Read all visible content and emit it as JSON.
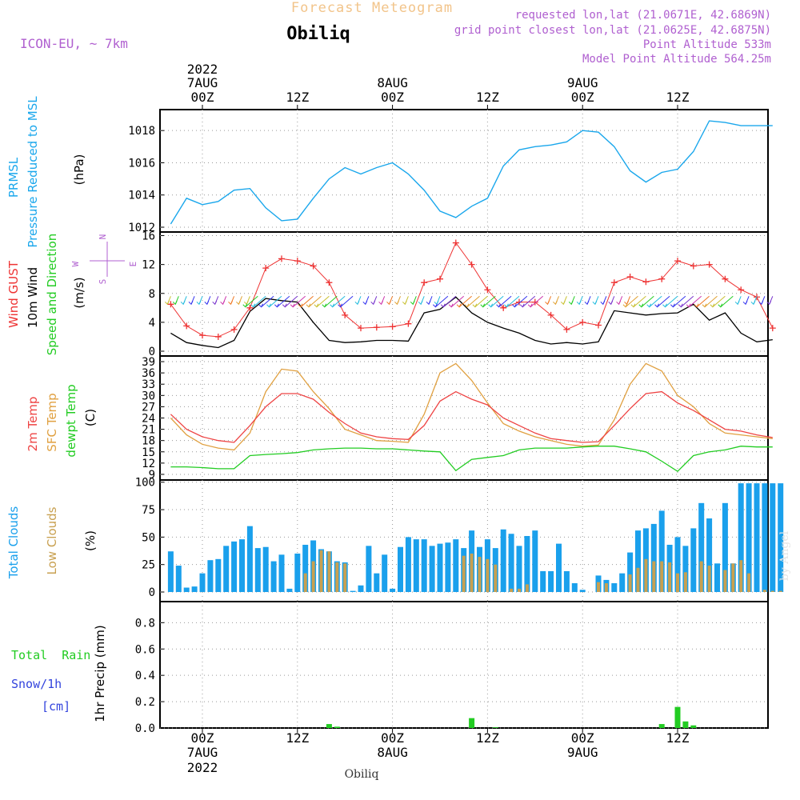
{
  "header": {
    "product_title": "Forecast Meteogram",
    "location": "Obiliq",
    "model": "ICON-EU, ~ 7km",
    "requested": "requested lon,lat (21.0671E, 42.6869N)",
    "gridpoint": "grid point closest lon,lat (21.0625E, 42.6875N)",
    "altitude": "Point Altitude 533m",
    "model_altitude": "Model Point Altitude 564.25m",
    "footer_location": "Obiliq",
    "credit": "by Angel"
  },
  "time_axis": {
    "top": {
      "year": "2022",
      "labels": [
        {
          "date": "7AUG",
          "hour": "00Z"
        },
        {
          "date": "",
          "hour": "12Z"
        },
        {
          "date": "8AUG",
          "hour": "00Z"
        },
        {
          "date": "",
          "hour": "12Z"
        },
        {
          "date": "9AUG",
          "hour": "00Z"
        },
        {
          "date": "",
          "hour": "12Z"
        }
      ]
    },
    "bottom": {
      "hours": [
        "00Z",
        "12Z",
        "00Z",
        "12Z",
        "00Z",
        "12Z"
      ],
      "dates": [
        "7AUG",
        "",
        "8AUG",
        "",
        "9AUG",
        ""
      ],
      "year": "2022"
    }
  },
  "panel_labels": {
    "pressure": {
      "name": "PRMSL",
      "desc": "Pressure Reduced to MSL",
      "unit": "(hPa)"
    },
    "wind": {
      "gust": "Wind GUST",
      "wind10": "10m Wind",
      "dir": "Speed and Direction",
      "unit": "(m/s)",
      "compass_ns": "N",
      "compass_s": "S",
      "compass_w": "W",
      "compass_e": "E"
    },
    "temp": {
      "t2m": "2m Temp",
      "sfc": "SFC Temp",
      "dew": "dewpt Temp",
      "unit": "(C)"
    },
    "clouds": {
      "total": "Total Clouds",
      "low": "Low Clouds",
      "unit": "(%)"
    },
    "precip": {
      "rain": "Total  Rain",
      "snow1": "Snow/1h",
      "snow2": "[cm]",
      "ylabel": "1hr Precip (mm)"
    }
  },
  "colors": {
    "pressure": "#1aa7ec",
    "gust": "#ee3333",
    "wind10": "#000000",
    "t2m": "#ee4444",
    "sfc": "#e0a040",
    "dew": "#22cc22",
    "total_clouds": "#1aa0ec",
    "low_clouds": "#c8a050",
    "rain": "#22cc22",
    "purple": "#b060d0",
    "orange_title": "#f0c080",
    "snow": "#3344dd"
  },
  "chart_data": [
    {
      "type": "line",
      "name": "pressure",
      "x_hours": [
        -4,
        -2,
        0,
        2,
        4,
        6,
        8,
        10,
        12,
        14,
        16,
        18,
        20,
        22,
        24,
        26,
        28,
        30,
        32,
        34,
        36,
        38,
        40,
        42,
        44,
        46,
        48,
        50,
        52,
        54,
        56,
        58,
        60,
        62,
        64,
        66,
        68,
        70,
        72
      ],
      "series": [
        {
          "name": "PRMSL",
          "values": [
            1012.2,
            1013.8,
            1013.4,
            1013.6,
            1014.3,
            1014.4,
            1013.2,
            1012.4,
            1012.5,
            1013.8,
            1015.0,
            1015.7,
            1015.3,
            1015.7,
            1016.0,
            1015.3,
            1014.3,
            1013.0,
            1012.6,
            1013.3,
            1013.8,
            1015.8,
            1016.8,
            1017.0,
            1017.1,
            1017.3,
            1018.0,
            1017.9,
            1017.0,
            1015.5,
            1014.8,
            1015.4,
            1015.6,
            1016.7,
            1018.6,
            1018.5,
            1018.3,
            1018.3,
            1018.3
          ]
        }
      ],
      "y_ticks": [
        1012,
        1014,
        1016,
        1018
      ],
      "ylim": [
        1012,
        1019.3
      ]
    },
    {
      "type": "line",
      "name": "wind",
      "x_hours": [
        -4,
        -2,
        0,
        2,
        4,
        6,
        8,
        10,
        12,
        14,
        16,
        18,
        20,
        22,
        24,
        26,
        28,
        30,
        32,
        34,
        36,
        38,
        40,
        42,
        44,
        46,
        48,
        50,
        52,
        54,
        56,
        58,
        60,
        62,
        64,
        66,
        68,
        70,
        72
      ],
      "series": [
        {
          "name": "Wind GUST",
          "values": [
            6.5,
            3.5,
            2.2,
            2.0,
            3.0,
            6.0,
            11.5,
            12.8,
            12.5,
            11.8,
            9.5,
            5.0,
            3.2,
            3.3,
            3.4,
            3.8,
            9.5,
            10.0,
            15.0,
            12.0,
            8.5,
            6.0,
            6.8,
            6.8,
            5.0,
            3.0,
            4.0,
            3.6,
            9.5,
            10.3,
            9.6,
            10.0,
            12.5,
            11.8,
            12.0,
            10.0,
            8.5,
            7.5,
            3.2
          ]
        },
        {
          "name": "10m Wind",
          "values": [
            2.5,
            1.2,
            0.8,
            0.5,
            1.5,
            5.5,
            7.3,
            7.0,
            6.8,
            4.0,
            1.5,
            1.2,
            1.3,
            1.5,
            1.5,
            1.4,
            5.3,
            5.8,
            7.5,
            5.3,
            4.0,
            3.2,
            2.5,
            1.5,
            1.0,
            1.2,
            1.0,
            1.3,
            5.6,
            5.3,
            5.0,
            5.2,
            5.3,
            6.5,
            4.3,
            5.3,
            2.5,
            1.3,
            1.6
          ]
        }
      ],
      "y_ticks": [
        0,
        4,
        8,
        12,
        16
      ],
      "ylim": [
        0,
        16.5
      ]
    },
    {
      "type": "line",
      "name": "temperature",
      "x_hours": [
        -4,
        -2,
        0,
        2,
        4,
        6,
        8,
        10,
        12,
        14,
        16,
        18,
        20,
        22,
        24,
        26,
        28,
        30,
        32,
        34,
        36,
        38,
        40,
        42,
        44,
        46,
        48,
        50,
        52,
        54,
        56,
        58,
        60,
        62,
        64,
        66,
        68,
        70,
        72
      ],
      "series": [
        {
          "name": "2m Temp",
          "values": [
            25.0,
            21.0,
            19.0,
            18.0,
            17.5,
            22.0,
            27.0,
            30.5,
            30.5,
            29.0,
            25.5,
            22.5,
            20.0,
            19.0,
            18.5,
            18.3,
            22.0,
            28.5,
            31.0,
            29.0,
            27.5,
            24.0,
            22.0,
            20.0,
            18.5,
            18.0,
            17.5,
            17.7,
            22.0,
            26.5,
            30.5,
            31.0,
            28.0,
            26.0,
            23.5,
            21.0,
            20.5,
            19.5,
            18.8
          ]
        },
        {
          "name": "SFC Temp",
          "values": [
            24.0,
            19.5,
            17.0,
            16.0,
            15.5,
            20.0,
            31.0,
            37.0,
            36.5,
            31.0,
            26.5,
            21.0,
            19.5,
            18.0,
            17.8,
            17.5,
            25.0,
            36.0,
            38.5,
            34.0,
            28.0,
            22.5,
            20.5,
            19.0,
            18.0,
            17.0,
            16.5,
            16.8,
            23.5,
            33.0,
            38.5,
            36.5,
            30.0,
            27.0,
            22.5,
            20.0,
            19.5,
            19.0,
            18.5
          ]
        },
        {
          "name": "dewpt Temp",
          "values": [
            11.0,
            11.0,
            10.8,
            10.5,
            10.5,
            14.0,
            14.3,
            14.5,
            14.8,
            15.5,
            15.8,
            16.0,
            16.0,
            15.8,
            15.8,
            15.5,
            15.2,
            15.0,
            10.0,
            13.0,
            13.5,
            14.0,
            15.5,
            16.0,
            16.0,
            16.0,
            16.3,
            16.5,
            16.5,
            15.8,
            15.0,
            12.5,
            9.8,
            14.0,
            15.0,
            15.5,
            16.5,
            16.3,
            16.3
          ]
        }
      ],
      "y_ticks": [
        9,
        12,
        15,
        18,
        21,
        24,
        27,
        30,
        33,
        36,
        39
      ],
      "ylim": [
        7.5,
        40.5
      ]
    },
    {
      "type": "bar",
      "name": "clouds",
      "x_start_hour": -4,
      "x_step_hours": 1,
      "series": [
        {
          "name": "Total Clouds",
          "values": [
            37,
            24,
            4,
            5,
            17,
            29,
            30,
            42,
            46,
            48,
            60,
            40,
            41,
            28,
            34,
            3,
            35,
            43,
            47,
            39,
            37,
            28,
            27,
            1,
            6,
            42,
            17,
            34,
            3,
            41,
            50,
            48,
            48,
            42,
            44,
            45,
            48,
            40,
            56,
            41,
            48,
            40,
            57,
            53,
            42,
            51,
            56,
            19,
            19,
            44,
            19,
            8,
            2,
            0,
            15,
            11,
            8,
            17,
            36,
            56,
            58,
            62,
            74,
            43,
            50,
            42,
            58,
            81,
            67,
            26,
            81,
            26,
            99,
            99,
            99,
            99,
            99,
            99
          ]
        },
        {
          "name": "Low Clouds",
          "values": [
            0,
            0,
            0,
            0,
            0,
            0,
            0,
            0,
            0,
            0,
            0,
            0,
            0,
            0,
            0,
            0,
            0,
            17,
            28,
            38,
            37,
            27,
            26,
            0,
            0,
            0,
            0,
            0,
            0,
            0,
            0,
            0,
            0,
            0,
            0,
            0,
            0,
            33,
            35,
            32,
            30,
            25,
            0,
            3,
            3,
            7,
            0,
            0,
            0,
            0,
            0,
            0,
            0,
            0,
            9,
            8,
            0,
            0,
            16,
            22,
            30,
            28,
            28,
            27,
            17,
            18,
            0,
            28,
            24,
            0,
            20,
            26,
            29,
            17,
            0,
            2,
            1,
            1
          ]
        }
      ],
      "y_ticks": [
        0,
        25,
        50,
        75,
        100
      ],
      "ylim": [
        0,
        102
      ]
    },
    {
      "type": "bar",
      "name": "precipitation",
      "x_hours": [
        16,
        17,
        34,
        37,
        58,
        60,
        61,
        62
      ],
      "series": [
        {
          "name": "Total Rain",
          "values": [
            0.03,
            0.01,
            0.075,
            0.005,
            0.03,
            0.16,
            0.05,
            0.02
          ]
        }
      ],
      "y_ticks": [
        0.0,
        0.2,
        0.4,
        0.6,
        0.8
      ],
      "ylim": [
        0,
        0.96
      ]
    }
  ],
  "wind_arrows": {
    "note": "direction each arrow points, degrees (meteorological: 0=arrow pointing north)",
    "hours_0": [
      -4,
      -3,
      -2,
      -1,
      0,
      1,
      2,
      3,
      4,
      5,
      6,
      7
    ],
    "dirs_0": [
      200,
      190,
      190,
      200,
      200,
      200,
      200,
      200,
      200,
      200,
      200,
      200
    ],
    "colors_0": [
      "#22bbdd",
      "#3333ee",
      "#3333ee",
      "#7733cc",
      "#7733cc",
      "#7733cc",
      "#7733cc",
      "#7733cc",
      "#7733cc",
      "#7733cc",
      "#22bbdd",
      "#22bbdd"
    ]
  }
}
